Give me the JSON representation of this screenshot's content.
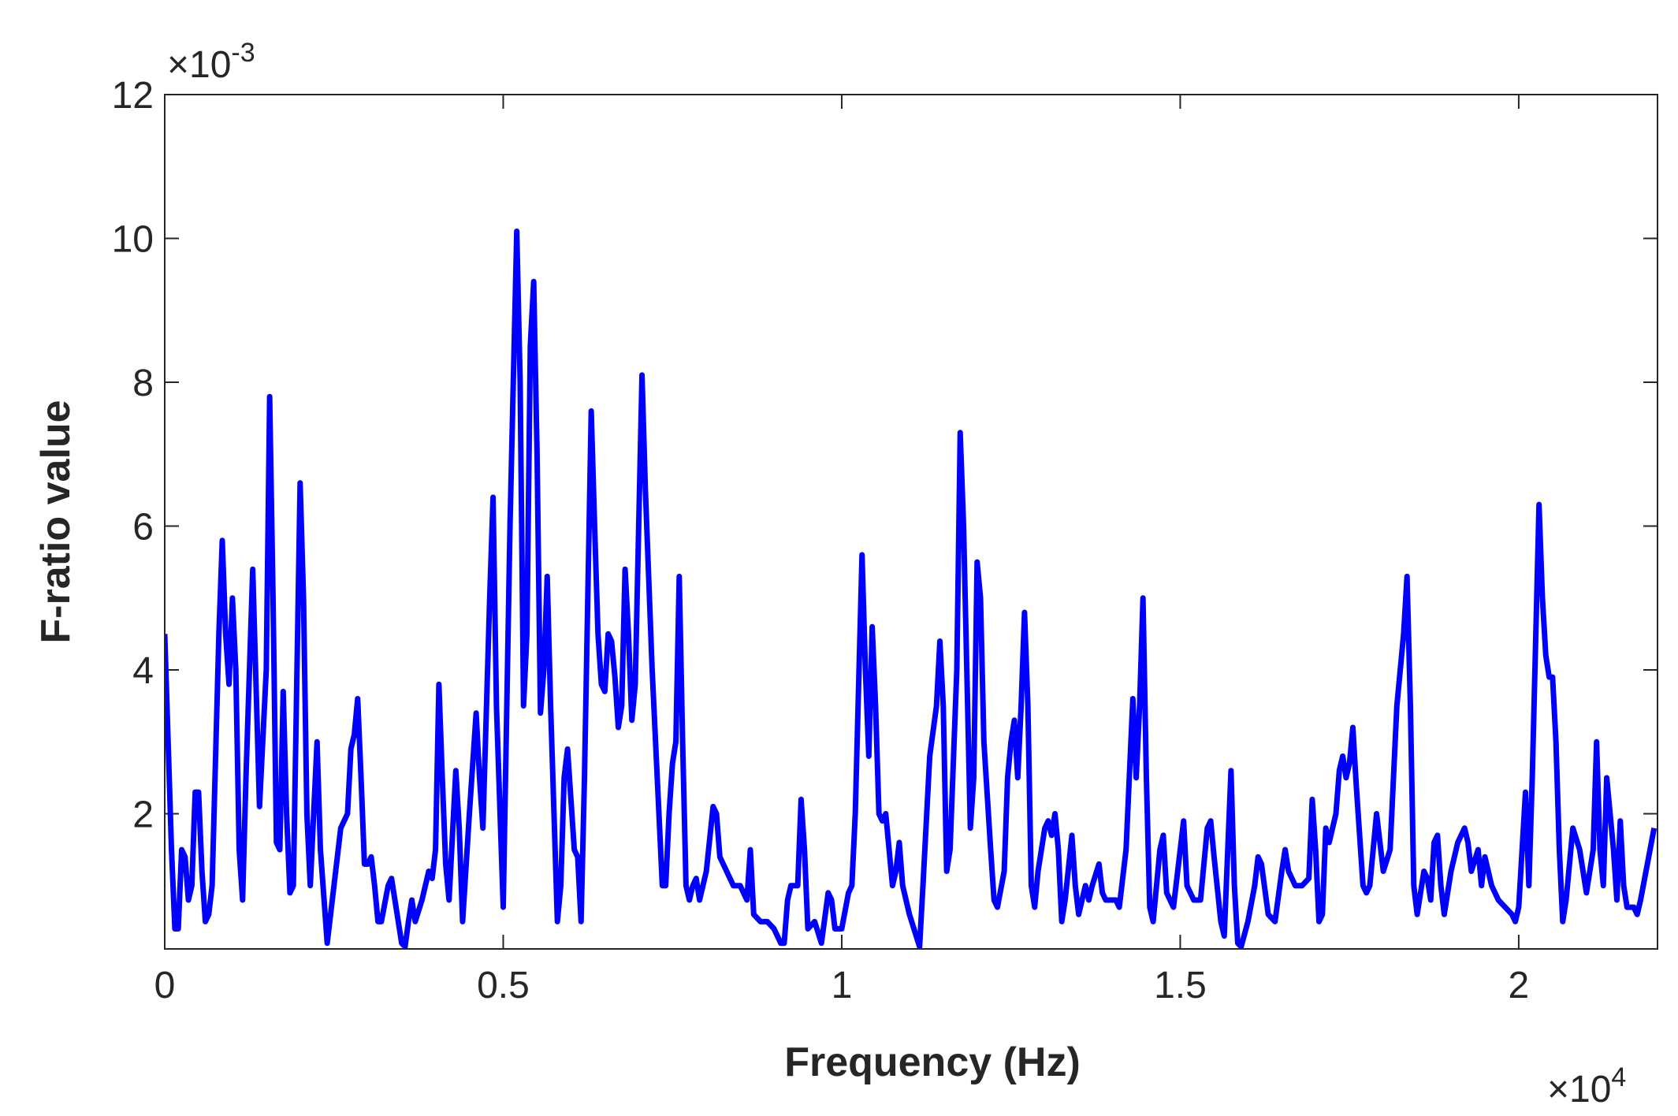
{
  "chart_data": {
    "type": "line",
    "xlabel": "Frequency (Hz)",
    "ylabel": "F-ratio value",
    "x_exponent": {
      "base": "×10",
      "power": "4"
    },
    "y_exponent": {
      "base": "×10",
      "power": "-3"
    },
    "xlim": [
      0,
      22050
    ],
    "ylim": [
      0.00012,
      0.012
    ],
    "xticks": [
      0,
      {
        "value": 5000,
        "label": "0.5"
      },
      {
        "value": 10000,
        "label": "1"
      },
      {
        "value": 15000,
        "label": "1.5"
      },
      {
        "value": 20000,
        "label": "2"
      }
    ],
    "yticks": [
      {
        "value": 0.002,
        "label": "2"
      },
      {
        "value": 0.004,
        "label": "4"
      },
      {
        "value": 0.006,
        "label": "6"
      },
      {
        "value": 0.008,
        "label": "8"
      },
      {
        "value": 0.01,
        "label": "10"
      },
      {
        "value": 0.012,
        "label": "12"
      }
    ],
    "grid": false,
    "series": [
      {
        "color": "#0000ff",
        "x": [
          0,
          100,
          150,
          200,
          250,
          300,
          350,
          400,
          450,
          500,
          550,
          600,
          650,
          700,
          800,
          850,
          900,
          950,
          1000,
          1050,
          1100,
          1150,
          1200,
          1300,
          1400,
          1500,
          1550,
          1600,
          1650,
          1700,
          1750,
          1800,
          1850,
          1900,
          2000,
          2050,
          2100,
          2150,
          2200,
          2250,
          2300,
          2400,
          2500,
          2600,
          2700,
          2750,
          2800,
          2850,
          2900,
          2950,
          3000,
          3050,
          3100,
          3150,
          3200,
          3300,
          3350,
          3400,
          3500,
          3550,
          3600,
          3650,
          3700,
          3800,
          3900,
          3950,
          4000,
          4050,
          4100,
          4150,
          4200,
          4300,
          4350,
          4400,
          4500,
          4600,
          4650,
          4700,
          4800,
          4850,
          4900,
          5000,
          5100,
          5200,
          5250,
          5300,
          5350,
          5400,
          5450,
          5500,
          5550,
          5600,
          5650,
          5700,
          5750,
          5800,
          5850,
          5900,
          5950,
          6000,
          6050,
          6100,
          6150,
          6200,
          6300,
          6350,
          6400,
          6450,
          6500,
          6550,
          6600,
          6650,
          6700,
          6750,
          6800,
          6850,
          6900,
          6950,
          7050,
          7100,
          7200,
          7300,
          7350,
          7400,
          7450,
          7500,
          7550,
          7600,
          7650,
          7700,
          7750,
          7800,
          7850,
          7900,
          8000,
          8100,
          8150,
          8200,
          8300,
          8400,
          8500,
          8600,
          8650,
          8700,
          8800,
          8900,
          9000,
          9100,
          9150,
          9200,
          9250,
          9300,
          9350,
          9400,
          9450,
          9500,
          9600,
          9700,
          9800,
          9850,
          9900,
          10000,
          10100,
          10150,
          10200,
          10300,
          10350,
          10400,
          10450,
          10500,
          10550,
          10600,
          10650,
          10700,
          10750,
          10800,
          10850,
          10900,
          11000,
          11100,
          11150,
          11200,
          11300,
          11400,
          11450,
          11500,
          11550,
          11600,
          11700,
          11750,
          11800,
          11900,
          11950,
          12000,
          12050,
          12100,
          12200,
          12250,
          12300,
          12400,
          12450,
          12500,
          12550,
          12600,
          12650,
          12700,
          12750,
          12800,
          12850,
          12900,
          13000,
          13050,
          13100,
          13150,
          13200,
          13250,
          13300,
          13400,
          13450,
          13500,
          13600,
          13650,
          13700,
          13800,
          13850,
          13900,
          14000,
          14050,
          14100,
          14200,
          14300,
          14350,
          14400,
          14450,
          14500,
          14550,
          14600,
          14700,
          14750,
          14800,
          14900,
          15000,
          15050,
          15100,
          15200,
          15300,
          15400,
          15450,
          15500,
          15600,
          15650,
          15750,
          15800,
          15850,
          15900,
          16000,
          16100,
          16150,
          16200,
          16300,
          16400,
          16500,
          16550,
          16600,
          16700,
          16800,
          16900,
          16950,
          17000,
          17050,
          17100,
          17150,
          17200,
          17300,
          17350,
          17400,
          17450,
          17500,
          17550,
          17600,
          17700,
          17750,
          17800,
          17900,
          18000,
          18100,
          18200,
          18300,
          18350,
          18400,
          18450,
          18500,
          18600,
          18650,
          18700,
          18750,
          18800,
          18850,
          18900,
          19000,
          19100,
          19200,
          19250,
          19300,
          19400,
          19450,
          19500,
          19600,
          19700,
          19800,
          19900,
          19950,
          20000,
          20100,
          20150,
          20200,
          20300,
          20350,
          20400,
          20450,
          20500,
          20550,
          20600,
          20650,
          20700,
          20800,
          20900,
          21000,
          21100,
          21150,
          21200,
          21250,
          21300,
          21400,
          21450,
          21500,
          21550,
          21600,
          21700,
          21750,
          21800,
          22000
        ],
        "values": [
          0.0045,
          0.0015,
          0.0004,
          0.0004,
          0.0015,
          0.0014,
          0.0008,
          0.001,
          0.0023,
          0.0023,
          0.0012,
          0.0005,
          0.0006,
          0.001,
          0.0045,
          0.0058,
          0.0045,
          0.0038,
          0.005,
          0.004,
          0.0015,
          0.0008,
          0.0025,
          0.0054,
          0.0021,
          0.004,
          0.0078,
          0.005,
          0.0016,
          0.0015,
          0.0037,
          0.002,
          0.0009,
          0.001,
          0.0066,
          0.005,
          0.002,
          0.001,
          0.002,
          0.003,
          0.0015,
          0.0002,
          0.001,
          0.0018,
          0.002,
          0.0029,
          0.0031,
          0.0036,
          0.0025,
          0.0013,
          0.0013,
          0.0014,
          0.001,
          0.0005,
          0.0005,
          0.001,
          0.0011,
          0.0008,
          0.0002,
          0.00015,
          0.0005,
          0.0008,
          0.0005,
          0.0008,
          0.0012,
          0.0011,
          0.0015,
          0.0038,
          0.0025,
          0.0013,
          0.0008,
          0.0026,
          0.0018,
          0.0005,
          0.002,
          0.0034,
          0.0025,
          0.0018,
          0.005,
          0.0064,
          0.0035,
          0.0007,
          0.006,
          0.0101,
          0.008,
          0.0035,
          0.0045,
          0.0085,
          0.0094,
          0.007,
          0.0034,
          0.004,
          0.0053,
          0.0035,
          0.002,
          0.0005,
          0.001,
          0.0025,
          0.0029,
          0.0022,
          0.0015,
          0.0014,
          0.0005,
          0.0025,
          0.0076,
          0.006,
          0.0045,
          0.0038,
          0.0037,
          0.0045,
          0.0044,
          0.0039,
          0.0032,
          0.0035,
          0.0054,
          0.0045,
          0.0033,
          0.0038,
          0.0081,
          0.0065,
          0.004,
          0.002,
          0.001,
          0.001,
          0.002,
          0.0027,
          0.003,
          0.0053,
          0.003,
          0.001,
          0.0008,
          0.001,
          0.0011,
          0.0008,
          0.0012,
          0.0021,
          0.002,
          0.0014,
          0.0012,
          0.001,
          0.001,
          0.0008,
          0.0015,
          0.0006,
          0.0005,
          0.0005,
          0.0004,
          0.0002,
          0.0002,
          0.0008,
          0.001,
          0.001,
          0.001,
          0.0022,
          0.0015,
          0.0004,
          0.0005,
          0.0002,
          0.0009,
          0.0008,
          0.0004,
          0.0004,
          0.0009,
          0.001,
          0.002,
          0.0056,
          0.004,
          0.0028,
          0.0046,
          0.0035,
          0.002,
          0.0019,
          0.002,
          0.0015,
          0.001,
          0.0012,
          0.0016,
          0.001,
          0.0006,
          0.0003,
          0.00015,
          0.001,
          0.0028,
          0.0035,
          0.0044,
          0.0035,
          0.0012,
          0.0015,
          0.004,
          0.0073,
          0.006,
          0.0018,
          0.0025,
          0.0055,
          0.005,
          0.003,
          0.0015,
          0.0008,
          0.0007,
          0.0012,
          0.0025,
          0.003,
          0.0033,
          0.0025,
          0.0035,
          0.0048,
          0.0035,
          0.001,
          0.0007,
          0.0012,
          0.0018,
          0.0019,
          0.0017,
          0.002,
          0.0015,
          0.0005,
          0.0008,
          0.0017,
          0.001,
          0.0006,
          0.001,
          0.0008,
          0.001,
          0.0013,
          0.0009,
          0.0008,
          0.0008,
          0.0008,
          0.0007,
          0.0015,
          0.0036,
          0.0025,
          0.0035,
          0.005,
          0.0025,
          0.0007,
          0.0005,
          0.0015,
          0.0017,
          0.0009,
          0.0007,
          0.0015,
          0.0019,
          0.001,
          0.0008,
          0.0008,
          0.0018,
          0.0019,
          0.0014,
          0.0005,
          0.0003,
          0.0026,
          0.001,
          0.0002,
          0.00015,
          0.0005,
          0.001,
          0.0014,
          0.0013,
          0.0006,
          0.0005,
          0.0012,
          0.0015,
          0.0012,
          0.001,
          0.001,
          0.0011,
          0.0022,
          0.0015,
          0.0005,
          0.0006,
          0.0018,
          0.0016,
          0.002,
          0.0026,
          0.0028,
          0.0025,
          0.0027,
          0.0032,
          0.0024,
          0.001,
          0.0009,
          0.001,
          0.002,
          0.0012,
          0.0015,
          0.0035,
          0.0045,
          0.0053,
          0.0035,
          0.001,
          0.0006,
          0.0012,
          0.0011,
          0.0008,
          0.0016,
          0.0017,
          0.001,
          0.0006,
          0.0012,
          0.0016,
          0.0018,
          0.0016,
          0.0012,
          0.0015,
          0.001,
          0.0014,
          0.001,
          0.0008,
          0.0007,
          0.0006,
          0.0005,
          0.0007,
          0.0023,
          0.001,
          0.0025,
          0.0063,
          0.005,
          0.0042,
          0.0039,
          0.0039,
          0.003,
          0.0015,
          0.0005,
          0.0008,
          0.0018,
          0.0015,
          0.0009,
          0.0015,
          0.003,
          0.0015,
          0.001,
          0.0025,
          0.0015,
          0.0008,
          0.0019,
          0.001,
          0.0007,
          0.0007,
          0.0006,
          0.0008,
          0.0018
        ]
      }
    ]
  }
}
